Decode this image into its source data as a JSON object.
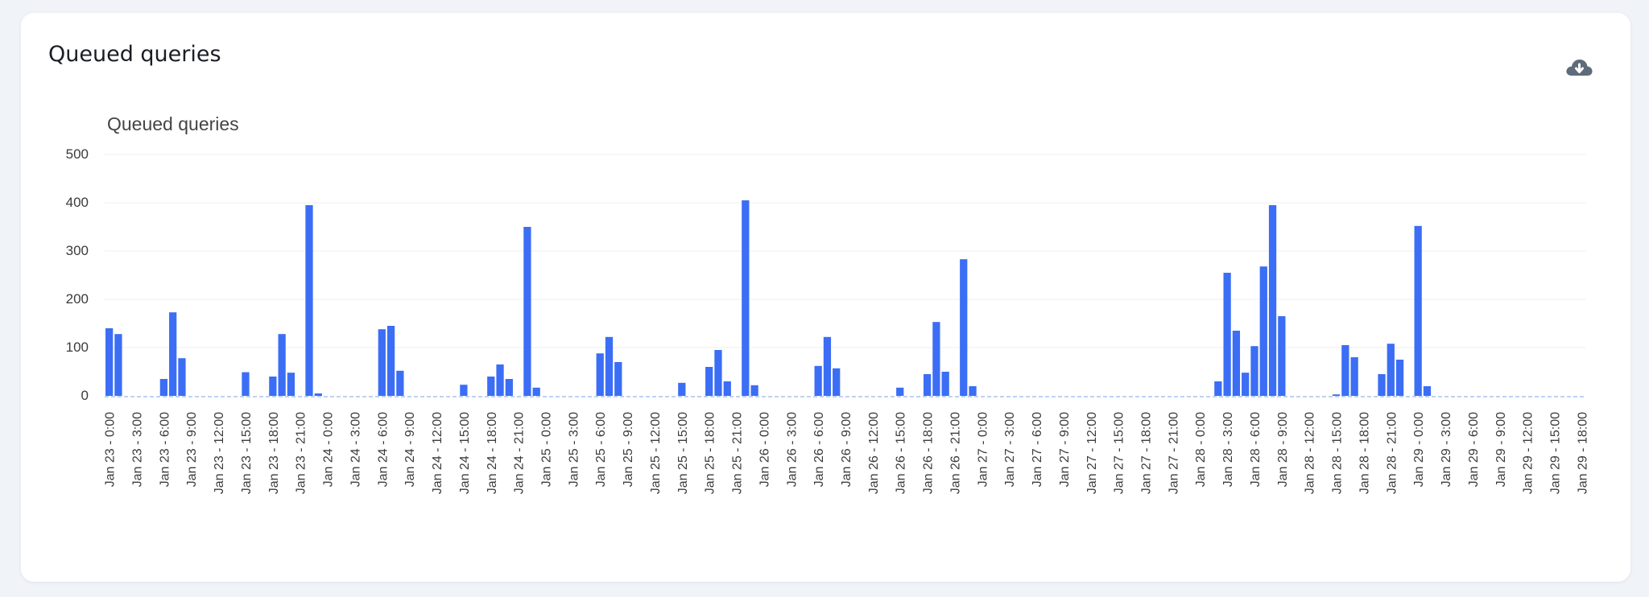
{
  "card": {
    "title": "Queued queries",
    "download_icon": "cloud-download-icon"
  },
  "colors": {
    "bar": "#3b6ef5",
    "grid": "#eceff3",
    "baseline": "#a9c4ee",
    "text": "#3b3b3b"
  },
  "chart_data": {
    "type": "bar",
    "title": "Queued queries",
    "xlabel": "",
    "ylabel": "",
    "ylim": [
      0,
      500
    ],
    "yticks": [
      0,
      100,
      200,
      300,
      400,
      500
    ],
    "grid": true,
    "legend": "none",
    "x_tick_every": 3,
    "x": [
      "Jan 23 - 0:00",
      "Jan 23 - 1:00",
      "Jan 23 - 2:00",
      "Jan 23 - 3:00",
      "Jan 23 - 4:00",
      "Jan 23 - 5:00",
      "Jan 23 - 6:00",
      "Jan 23 - 7:00",
      "Jan 23 - 8:00",
      "Jan 23 - 9:00",
      "Jan 23 - 10:00",
      "Jan 23 - 11:00",
      "Jan 23 - 12:00",
      "Jan 23 - 13:00",
      "Jan 23 - 14:00",
      "Jan 23 - 15:00",
      "Jan 23 - 16:00",
      "Jan 23 - 17:00",
      "Jan 23 - 18:00",
      "Jan 23 - 19:00",
      "Jan 23 - 20:00",
      "Jan 23 - 21:00",
      "Jan 23 - 22:00",
      "Jan 23 - 23:00",
      "Jan 24 - 0:00",
      "Jan 24 - 1:00",
      "Jan 24 - 2:00",
      "Jan 24 - 3:00",
      "Jan 24 - 4:00",
      "Jan 24 - 5:00",
      "Jan 24 - 6:00",
      "Jan 24 - 7:00",
      "Jan 24 - 8:00",
      "Jan 24 - 9:00",
      "Jan 24 - 10:00",
      "Jan 24 - 11:00",
      "Jan 24 - 12:00",
      "Jan 24 - 13:00",
      "Jan 24 - 14:00",
      "Jan 24 - 15:00",
      "Jan 24 - 16:00",
      "Jan 24 - 17:00",
      "Jan 24 - 18:00",
      "Jan 24 - 19:00",
      "Jan 24 - 20:00",
      "Jan 24 - 21:00",
      "Jan 24 - 22:00",
      "Jan 24 - 23:00",
      "Jan 25 - 0:00",
      "Jan 25 - 1:00",
      "Jan 25 - 2:00",
      "Jan 25 - 3:00",
      "Jan 25 - 4:00",
      "Jan 25 - 5:00",
      "Jan 25 - 6:00",
      "Jan 25 - 7:00",
      "Jan 25 - 8:00",
      "Jan 25 - 9:00",
      "Jan 25 - 10:00",
      "Jan 25 - 11:00",
      "Jan 25 - 12:00",
      "Jan 25 - 13:00",
      "Jan 25 - 14:00",
      "Jan 25 - 15:00",
      "Jan 25 - 16:00",
      "Jan 25 - 17:00",
      "Jan 25 - 18:00",
      "Jan 25 - 19:00",
      "Jan 25 - 20:00",
      "Jan 25 - 21:00",
      "Jan 25 - 22:00",
      "Jan 25 - 23:00",
      "Jan 26 - 0:00",
      "Jan 26 - 1:00",
      "Jan 26 - 2:00",
      "Jan 26 - 3:00",
      "Jan 26 - 4:00",
      "Jan 26 - 5:00",
      "Jan 26 - 6:00",
      "Jan 26 - 7:00",
      "Jan 26 - 8:00",
      "Jan 26 - 9:00",
      "Jan 26 - 10:00",
      "Jan 26 - 11:00",
      "Jan 26 - 12:00",
      "Jan 26 - 13:00",
      "Jan 26 - 14:00",
      "Jan 26 - 15:00",
      "Jan 26 - 16:00",
      "Jan 26 - 17:00",
      "Jan 26 - 18:00",
      "Jan 26 - 19:00",
      "Jan 26 - 20:00",
      "Jan 26 - 21:00",
      "Jan 26 - 22:00",
      "Jan 26 - 23:00",
      "Jan 27 - 0:00",
      "Jan 27 - 1:00",
      "Jan 27 - 2:00",
      "Jan 27 - 3:00",
      "Jan 27 - 4:00",
      "Jan 27 - 5:00",
      "Jan 27 - 6:00",
      "Jan 27 - 7:00",
      "Jan 27 - 8:00",
      "Jan 27 - 9:00",
      "Jan 27 - 10:00",
      "Jan 27 - 11:00",
      "Jan 27 - 12:00",
      "Jan 27 - 13:00",
      "Jan 27 - 14:00",
      "Jan 27 - 15:00",
      "Jan 27 - 16:00",
      "Jan 27 - 17:00",
      "Jan 27 - 18:00",
      "Jan 27 - 19:00",
      "Jan 27 - 20:00",
      "Jan 27 - 21:00",
      "Jan 27 - 22:00",
      "Jan 27 - 23:00",
      "Jan 28 - 0:00",
      "Jan 28 - 1:00",
      "Jan 28 - 2:00",
      "Jan 28 - 3:00",
      "Jan 28 - 4:00",
      "Jan 28 - 5:00",
      "Jan 28 - 6:00",
      "Jan 28 - 7:00",
      "Jan 28 - 8:00",
      "Jan 28 - 9:00",
      "Jan 28 - 10:00",
      "Jan 28 - 11:00",
      "Jan 28 - 12:00",
      "Jan 28 - 13:00",
      "Jan 28 - 14:00",
      "Jan 28 - 15:00",
      "Jan 28 - 16:00",
      "Jan 28 - 17:00",
      "Jan 28 - 18:00",
      "Jan 28 - 19:00",
      "Jan 28 - 20:00",
      "Jan 28 - 21:00",
      "Jan 28 - 22:00",
      "Jan 28 - 23:00",
      "Jan 29 - 0:00",
      "Jan 29 - 1:00",
      "Jan 29 - 2:00",
      "Jan 29 - 3:00",
      "Jan 29 - 4:00",
      "Jan 29 - 5:00",
      "Jan 29 - 6:00",
      "Jan 29 - 7:00",
      "Jan 29 - 8:00",
      "Jan 29 - 9:00",
      "Jan 29 - 10:00",
      "Jan 29 - 11:00",
      "Jan 29 - 12:00",
      "Jan 29 - 13:00",
      "Jan 29 - 14:00",
      "Jan 29 - 15:00",
      "Jan 29 - 16:00",
      "Jan 29 - 17:00",
      "Jan 29 - 18:00"
    ],
    "series": [
      {
        "values": [
          140,
          128,
          0,
          0,
          0,
          0,
          35,
          173,
          78,
          0,
          0,
          0,
          0,
          0,
          0,
          49,
          0,
          0,
          40,
          128,
          48,
          0,
          395,
          5,
          0,
          0,
          0,
          0,
          0,
          0,
          138,
          145,
          52,
          0,
          0,
          0,
          0,
          0,
          0,
          23,
          0,
          0,
          40,
          65,
          35,
          0,
          350,
          17,
          0,
          0,
          0,
          0,
          0,
          0,
          88,
          122,
          70,
          0,
          0,
          0,
          0,
          0,
          0,
          27,
          0,
          0,
          60,
          95,
          30,
          0,
          405,
          22,
          0,
          0,
          0,
          0,
          0,
          0,
          62,
          122,
          57,
          0,
          0,
          0,
          0,
          0,
          0,
          17,
          0,
          0,
          45,
          153,
          50,
          0,
          283,
          20,
          0,
          0,
          0,
          0,
          0,
          0,
          0,
          0,
          0,
          0,
          0,
          0,
          0,
          0,
          0,
          0,
          0,
          0,
          0,
          0,
          0,
          0,
          0,
          0,
          0,
          0,
          30,
          255,
          135,
          48,
          103,
          268,
          395,
          165,
          0,
          0,
          0,
          0,
          0,
          3,
          105,
          80,
          0,
          0,
          45,
          108,
          75,
          0,
          352,
          20,
          0,
          0,
          0,
          0,
          0,
          0,
          0,
          0,
          0,
          0,
          0,
          0,
          0,
          0,
          0,
          0,
          0
        ]
      }
    ]
  }
}
